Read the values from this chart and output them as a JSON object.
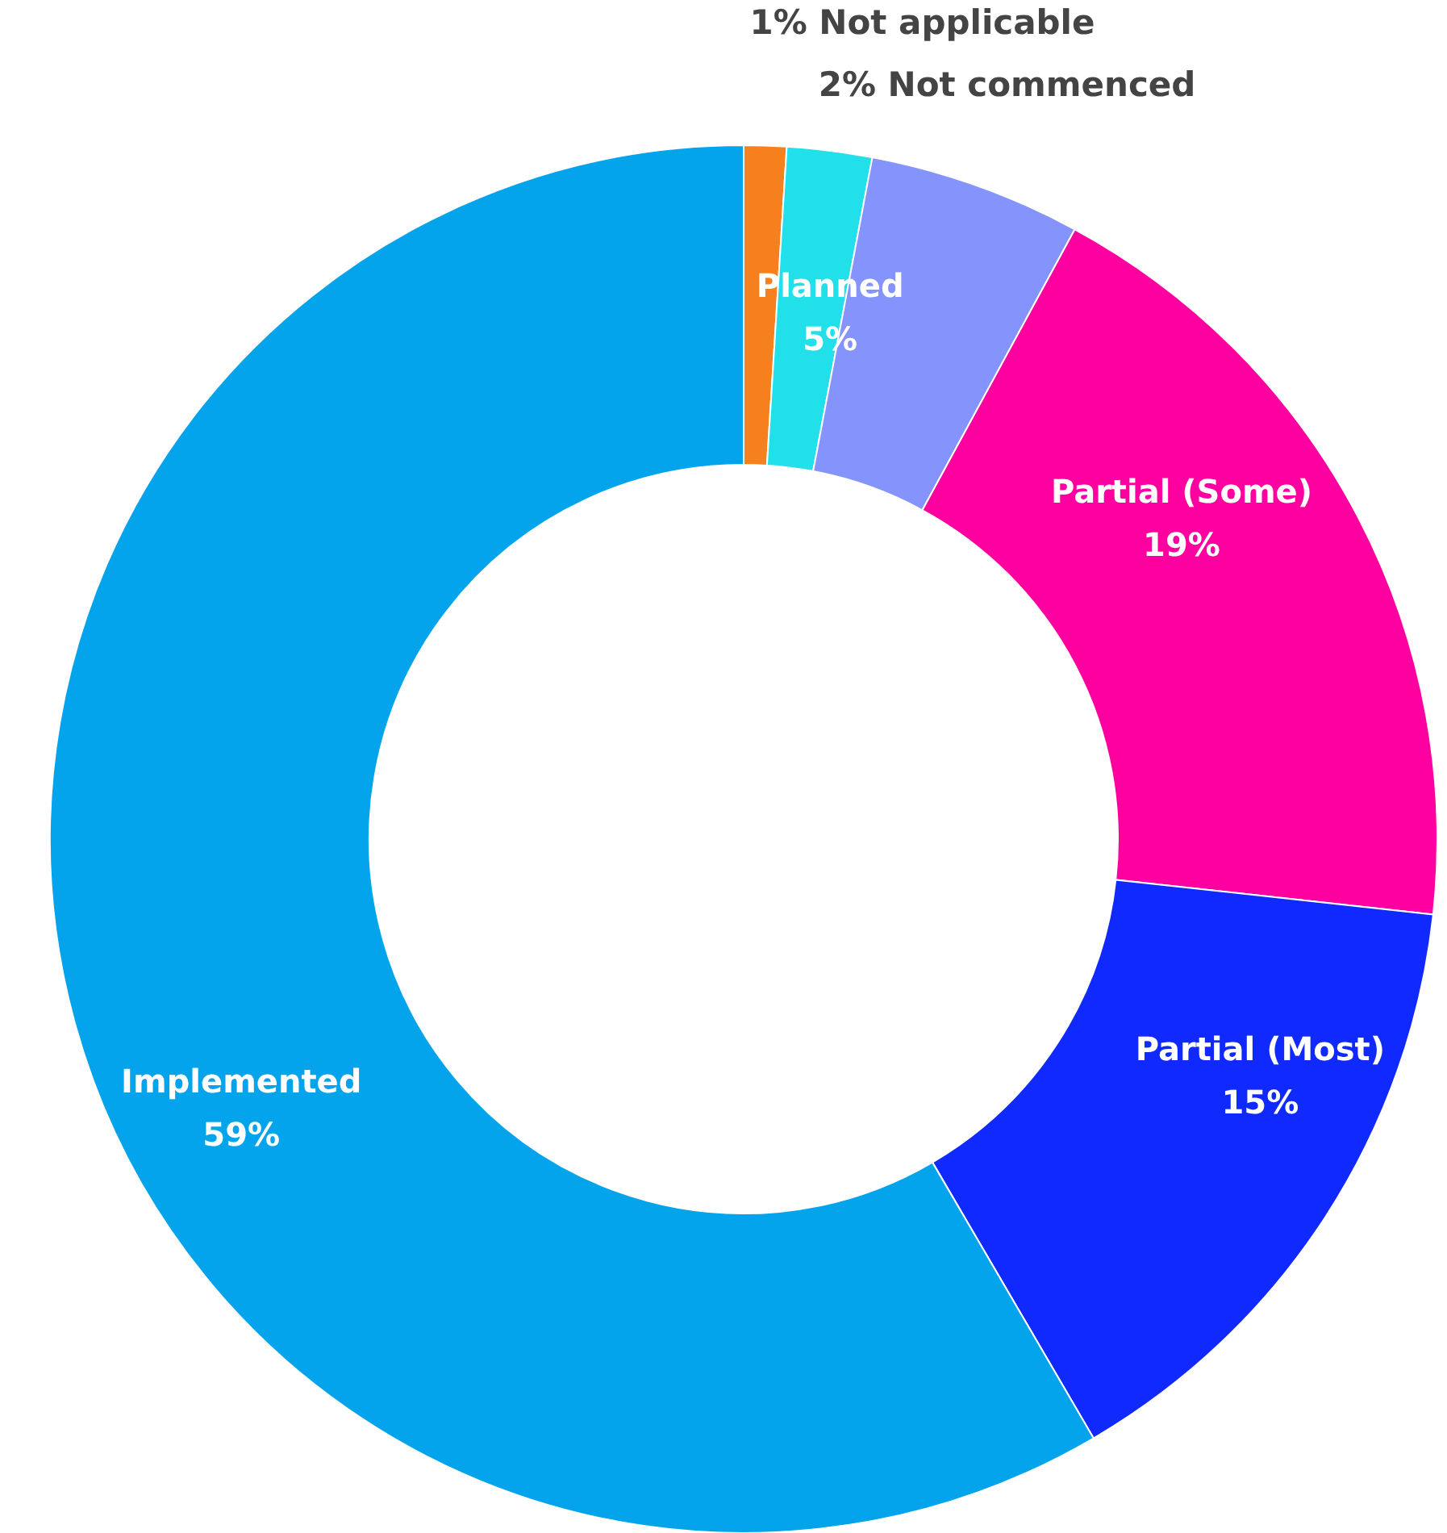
{
  "chart_data": {
    "type": "donut",
    "categories": [
      "Not applicable",
      "Not commenced",
      "Planned",
      "Partial (Some)",
      "Partial (Most)",
      "Implemented"
    ],
    "values": [
      1,
      2,
      5,
      19,
      15,
      59
    ],
    "value_labels": [
      "1%",
      "2%",
      "5%",
      "19%",
      "15%",
      "59%"
    ],
    "colors": [
      "#f7801e",
      "#22e0ea",
      "#8593fc",
      "#ff00a0",
      "#1029ff",
      "#04a4ec"
    ]
  }
}
